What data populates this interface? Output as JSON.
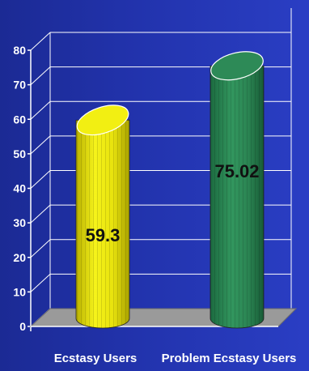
{
  "chart_data": {
    "type": "bar",
    "style": "3d-cylinder",
    "categories": [
      "Ecstasy Users",
      "Problem Ecstasy Users"
    ],
    "values": [
      59.3,
      75.02
    ],
    "value_labels": [
      "59.3",
      "75.02"
    ],
    "bar_colors": [
      "#f2ef12",
      "#2d8a57"
    ],
    "ylim": [
      0,
      80
    ],
    "y_ticks": [
      0,
      10,
      20,
      30,
      40,
      50,
      60,
      70,
      80
    ],
    "y_tick_labels": [
      "0",
      "10",
      "20",
      "30",
      "40",
      "50",
      "60",
      "70",
      "80"
    ],
    "grid": true,
    "title": "",
    "xlabel": "",
    "ylabel": ""
  }
}
